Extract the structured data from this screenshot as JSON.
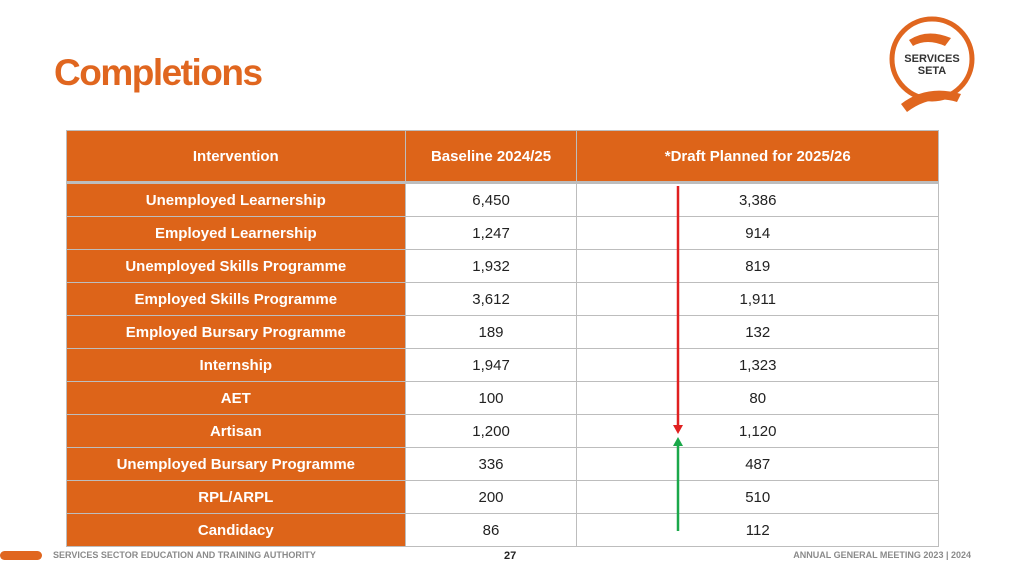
{
  "header": {
    "title": "Completions",
    "logo": [
      "SERVICES",
      "SETA"
    ]
  },
  "table": {
    "columns": [
      "Intervention",
      "Baseline 2024/25",
      "*Draft Planned for 2025/26"
    ],
    "rows": [
      [
        "Unemployed Learnership",
        "6,450",
        "3,386"
      ],
      [
        "Employed Learnership",
        "1,247",
        "914"
      ],
      [
        "Unemployed Skills Programme",
        "1,932",
        "819"
      ],
      [
        "Employed Skills Programme",
        "3,612",
        "1,911"
      ],
      [
        "Employed Bursary Programme",
        "189",
        "132"
      ],
      [
        "Internship",
        "1,947",
        "1,323"
      ],
      [
        "AET",
        "100",
        "80"
      ],
      [
        "Artisan",
        "1,200",
        "1,120"
      ],
      [
        "Unemployed Bursary Programme",
        "336",
        "487"
      ],
      [
        "RPL/ARPL",
        "200",
        "510"
      ],
      [
        "Candidacy",
        "86",
        "112"
      ]
    ]
  },
  "footer": {
    "left": "SERVICES SECTOR EDUCATION AND TRAINING AUTHORITY",
    "page": "27",
    "right": "ANNUAL GENERAL MEETING 2023 | 2024"
  }
}
